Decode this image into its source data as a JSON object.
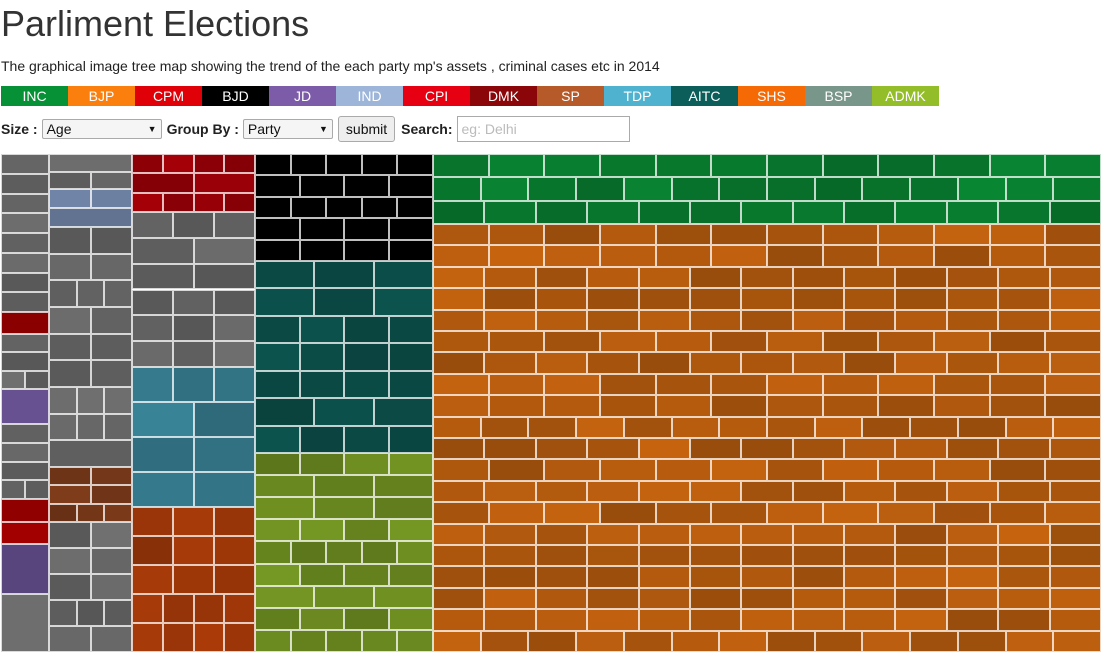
{
  "header": {
    "title": "Parliment Elections",
    "subtitle": "The graphical image tree map showing the trend of the each party mp's assets , criminal cases etc in 2014"
  },
  "legend": [
    {
      "label": "INC",
      "color": "#079137"
    },
    {
      "label": "BJP",
      "color": "#fa7f0d"
    },
    {
      "label": "CPM",
      "color": "#e00008"
    },
    {
      "label": "BJD",
      "color": "#000000"
    },
    {
      "label": "JD",
      "color": "#7c5ca8"
    },
    {
      "label": "IND",
      "color": "#9cb5d8"
    },
    {
      "label": "CPI",
      "color": "#e60012"
    },
    {
      "label": "DMK",
      "color": "#8a0608"
    },
    {
      "label": "SP",
      "color": "#b55a28"
    },
    {
      "label": "TDP",
      "color": "#4fb3cf"
    },
    {
      "label": "AITC",
      "color": "#0b5e5a"
    },
    {
      "label": "SHS",
      "color": "#f56a05"
    },
    {
      "label": "BSP",
      "color": "#79968a"
    },
    {
      "label": "ADMK",
      "color": "#93bd29"
    }
  ],
  "controls": {
    "size_label": "Size :",
    "size_value": "Age",
    "group_label": "Group By :",
    "group_value": "Party",
    "submit_label": "submit",
    "search_label": "Search:",
    "search_placeholder": "eg: Delhi"
  }
}
